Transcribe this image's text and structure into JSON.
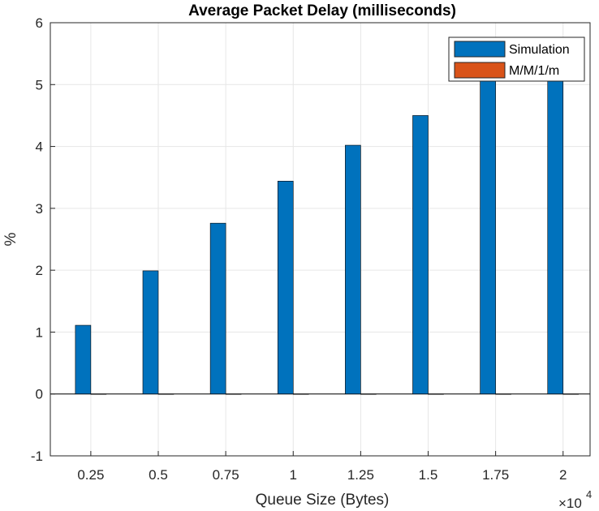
{
  "chart_data": {
    "type": "bar",
    "title": "Average Packet Delay (milliseconds)",
    "xlabel": "Queue Size (Bytes)",
    "ylabel": "%",
    "x_exponent_base": "×10",
    "x_exponent_power": "4",
    "categories": [
      "0.25",
      "0.5",
      "0.75",
      "1",
      "1.25",
      "1.5",
      "1.75",
      "2"
    ],
    "series": [
      {
        "name": "Simulation",
        "color": "#0072BD",
        "values": [
          1.11,
          1.99,
          2.76,
          3.44,
          4.02,
          4.5,
          5.1,
          5.1
        ]
      },
      {
        "name": "M/M/1/m",
        "color": "#D95319",
        "values": [
          0,
          0,
          0,
          0,
          0,
          0,
          0,
          0
        ]
      }
    ],
    "ylim": [
      -1,
      6
    ],
    "yticks": [
      "-1",
      "0",
      "1",
      "2",
      "3",
      "4",
      "5",
      "6"
    ],
    "grid": true,
    "legend_position": "top-right"
  }
}
